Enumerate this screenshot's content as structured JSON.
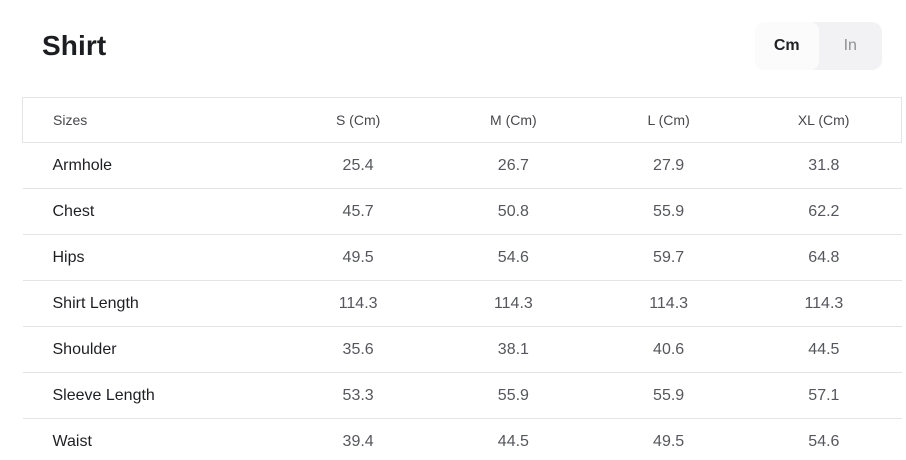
{
  "header": {
    "title": "Shirt",
    "unit_toggle": {
      "selected": "Cm",
      "options": [
        {
          "label": "Cm",
          "active": true
        },
        {
          "label": "In",
          "active": false
        }
      ]
    }
  },
  "table": {
    "columns": [
      "Sizes",
      "S (Cm)",
      "M (Cm)",
      "L (Cm)",
      "XL (Cm)"
    ],
    "rows": [
      {
        "label": "Armhole",
        "values": [
          "25.4",
          "26.7",
          "27.9",
          "31.8"
        ]
      },
      {
        "label": "Chest",
        "values": [
          "45.7",
          "50.8",
          "55.9",
          "62.2"
        ]
      },
      {
        "label": "Hips",
        "values": [
          "49.5",
          "54.6",
          "59.7",
          "64.8"
        ]
      },
      {
        "label": "Shirt Length",
        "values": [
          "114.3",
          "114.3",
          "114.3",
          "114.3"
        ]
      },
      {
        "label": "Shoulder",
        "values": [
          "35.6",
          "38.1",
          "40.6",
          "44.5"
        ]
      },
      {
        "label": "Sleeve Length",
        "values": [
          "53.3",
          "55.9",
          "55.9",
          "57.1"
        ]
      },
      {
        "label": "Waist",
        "values": [
          "39.4",
          "44.5",
          "49.5",
          "54.6"
        ]
      }
    ]
  },
  "colors": {
    "border": "#e3e4e8",
    "toggle_background": "#f2f2f4",
    "toggle_active_background": "#fbfbfc",
    "title_text": "#1c1d20",
    "value_text": "#56575c"
  }
}
